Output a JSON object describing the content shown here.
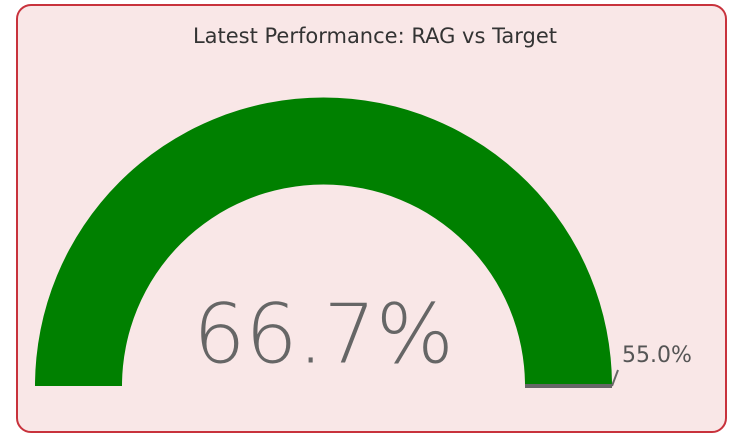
{
  "chart_data": {
    "type": "gauge",
    "title": "Latest Performance: RAG vs Target",
    "value": 66.7,
    "value_label": "66.7%",
    "color": "#008000",
    "target": 55.0,
    "target_label": "55.0%",
    "target_color": "#666666"
  }
}
